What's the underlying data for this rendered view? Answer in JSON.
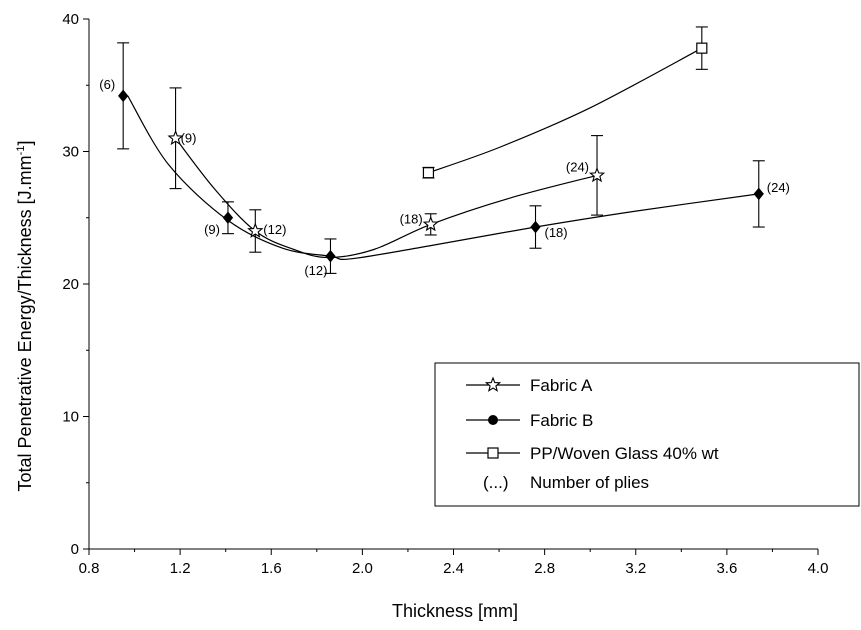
{
  "chart_data": {
    "type": "line",
    "xlabel": "Thickness [mm]",
    "ylabel": "Total Penetrative Energy/Thickness [J.mm",
    "ylabel_sup": "-1",
    "ylabel_close": "]",
    "xlim": [
      0.8,
      4.0
    ],
    "ylim": [
      0,
      40
    ],
    "xticks": [
      "0.8",
      "1.2",
      "1.6",
      "2.0",
      "2.4",
      "2.8",
      "3.2",
      "3.6",
      "4.0"
    ],
    "yticks": [
      "0",
      "10",
      "20",
      "30",
      "40"
    ],
    "grid": false,
    "legend_position": "bottom-right",
    "series": [
      {
        "name": "Fabric A",
        "marker": "star",
        "points": [
          {
            "x": 1.18,
            "y": 31.0,
            "err": 3.8,
            "label": "(9)"
          },
          {
            "x": 1.53,
            "y": 24.0,
            "err": 1.6,
            "label": "(12)"
          },
          {
            "x": 2.3,
            "y": 24.5,
            "err": 0.8,
            "label": "(18)"
          },
          {
            "x": 3.03,
            "y": 28.2,
            "err": 3.0,
            "label": "(24)"
          }
        ],
        "fit": [
          [
            1.18,
            31.0
          ],
          [
            1.35,
            27.2
          ],
          [
            1.53,
            24.0
          ],
          [
            1.7,
            22.6
          ],
          [
            1.85,
            22.0
          ],
          [
            2.05,
            22.6
          ],
          [
            2.3,
            24.5
          ],
          [
            2.65,
            26.5
          ],
          [
            3.03,
            28.2
          ]
        ]
      },
      {
        "name": "Fabric B",
        "marker": "diamond",
        "points": [
          {
            "x": 0.95,
            "y": 34.2,
            "err": 4.0,
            "label": "(6)"
          },
          {
            "x": 1.41,
            "y": 25.0,
            "err": 1.2,
            "label": "(9)"
          },
          {
            "x": 1.86,
            "y": 22.1,
            "err": 1.3,
            "label": "(12)"
          },
          {
            "x": 2.76,
            "y": 24.3,
            "err": 1.6,
            "label": "(18)"
          },
          {
            "x": 3.74,
            "y": 26.8,
            "err": 2.5,
            "label": "(24)"
          }
        ],
        "fit": [
          [
            0.97,
            34.2
          ],
          [
            1.15,
            29.0
          ],
          [
            1.41,
            24.8
          ],
          [
            1.65,
            22.7
          ],
          [
            1.86,
            22.1
          ],
          [
            1.95,
            21.9
          ],
          [
            2.3,
            22.9
          ],
          [
            2.76,
            24.3
          ],
          [
            3.2,
            25.5
          ],
          [
            3.74,
            26.8
          ]
        ]
      },
      {
        "name": "PP/Woven Glass 40% wt",
        "marker": "square",
        "points": [
          {
            "x": 2.29,
            "y": 28.4,
            "err": 0.4,
            "label": ""
          },
          {
            "x": 3.49,
            "y": 37.8,
            "err": 1.6,
            "label": ""
          }
        ],
        "fit": [
          [
            2.29,
            28.4
          ],
          [
            2.6,
            30.3
          ],
          [
            3.0,
            33.3
          ],
          [
            3.49,
            37.8
          ]
        ]
      }
    ],
    "legend": {
      "entries": [
        "Fabric A",
        "Fabric B",
        "PP/Woven Glass 40% wt"
      ],
      "note_symbol": "(...)",
      "note_text": "Number of plies"
    }
  }
}
